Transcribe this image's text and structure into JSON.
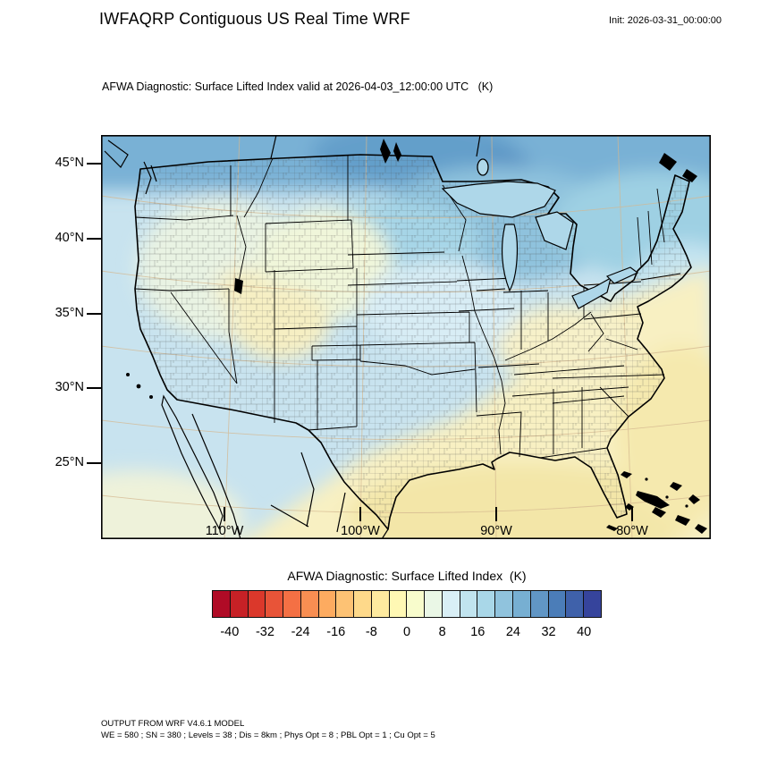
{
  "header": {
    "title": "IWFAQRP Contiguous US Real Time WRF",
    "init": "Init: 2026-03-31_00:00:00"
  },
  "plot": {
    "subtitle": "AFWA Diagnostic: Surface Lifted Index valid at 2026-04-03_12:00:00 UTC   (K)",
    "lat_ticks": [
      "45°N",
      "40°N",
      "35°N",
      "30°N",
      "25°N"
    ],
    "lon_ticks": [
      "110°W",
      "100°W",
      "90°W",
      "80°W"
    ]
  },
  "colorbar": {
    "title": "AFWA Diagnostic: Surface Lifted Index  (K)",
    "ticks": [
      "-40",
      "-32",
      "-24",
      "-16",
      "-8",
      "0",
      "8",
      "16",
      "24",
      "32",
      "40"
    ],
    "colors": [
      "#b00b26",
      "#c72126",
      "#db382b",
      "#e85438",
      "#f47044",
      "#f88e52",
      "#fdab60",
      "#fdc274",
      "#fed98a",
      "#feea9f",
      "#fff8b4",
      "#f8fccc",
      "#eaf7e6",
      "#d9eff6",
      "#c1e4ef",
      "#a9d7e8",
      "#90c3dd",
      "#77afd2",
      "#6196c5",
      "#4b7db8",
      "#3f61aa",
      "#36449c"
    ]
  },
  "footer": {
    "line1": "OUTPUT FROM WRF V4.6.1 MODEL",
    "line2": "WE = 580 ; SN = 380 ; Levels = 38 ; Dis = 8km ; Phys Opt = 8 ; PBL Opt = 1 ; Cu Opt = 5"
  },
  "chart_data": {
    "type": "heatmap",
    "title": "AFWA Diagnostic: Surface Lifted Index valid at 2026-04-03_12:00:00 UTC (K)",
    "units": "K",
    "region": "Contiguous United States (WRF model domain with county and state boundaries)",
    "x_tick_labels": [
      "110°W",
      "100°W",
      "90°W",
      "80°W"
    ],
    "y_tick_labels": [
      "45°N",
      "40°N",
      "35°N",
      "30°N",
      "25°N"
    ],
    "color_scale_min": -44,
    "color_scale_max": 44,
    "color_scale_step": 4,
    "colorbar_ticks": [
      -40,
      -32,
      -24,
      -16,
      -8,
      0,
      8,
      16,
      24,
      32,
      40
    ],
    "palette": [
      "#b00b26",
      "#c72126",
      "#db382b",
      "#e85438",
      "#f47044",
      "#f88e52",
      "#fdab60",
      "#fdc274",
      "#fed98a",
      "#feea9f",
      "#fff8b4",
      "#f8fccc",
      "#eaf7e6",
      "#d9eff6",
      "#c1e4ef",
      "#a9d7e8",
      "#90c3dd",
      "#77afd2",
      "#6196c5",
      "#4b7db8",
      "#3f61aa",
      "#36449c"
    ],
    "legend_position": "bottom",
    "grid": "10-degree lat/lon graticule, faint tan lines",
    "regional_values_K": [
      {
        "region": "Southern Canada (top of domain)",
        "approx_value": 20
      },
      {
        "region": "Lake Superior / Upper Great Lakes",
        "approx_value": 16
      },
      {
        "region": "Northern Plains (Dakotas, Minnesota)",
        "approx_value": 12
      },
      {
        "region": "Pacific Northwest coast and offshore",
        "approx_value": 10
      },
      {
        "region": "California coast",
        "approx_value": 8
      },
      {
        "region": "Northern Rockies (Idaho, Montana)",
        "approx_value": 2
      },
      {
        "region": "Utah / Wyoming / Colorado",
        "approx_value": -2
      },
      {
        "region": "Central Plains (Nebraska, Kansas)",
        "approx_value": 6
      },
      {
        "region": "Texas / Oklahoma / Gulf Coast states",
        "approx_value": -4
      },
      {
        "region": "Gulf of Mexico",
        "approx_value": -8
      },
      {
        "region": "Ohio Valley / Mid-Atlantic",
        "approx_value": -2
      },
      {
        "region": "Southeast US and Florida",
        "approx_value": -4
      },
      {
        "region": "Western Atlantic off the Southeast coast",
        "approx_value": -8
      },
      {
        "region": "New England and Northeast offshore",
        "approx_value": 10
      }
    ]
  }
}
